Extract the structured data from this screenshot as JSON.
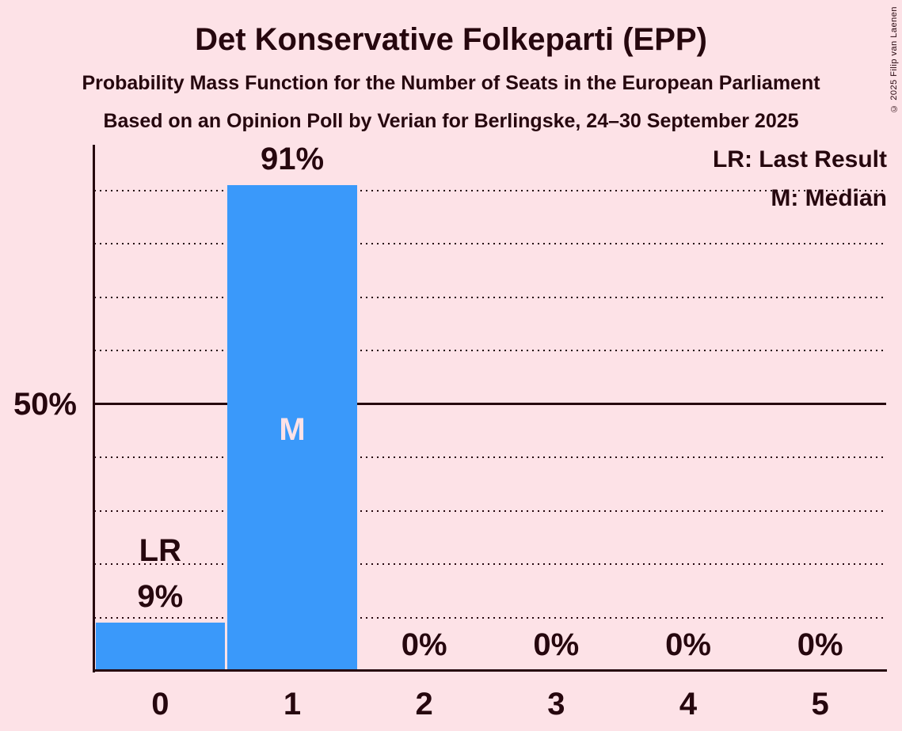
{
  "title": "Det Konservative Folkeparti (EPP)",
  "subtitles": [
    "Probability Mass Function for the Number of Seats in the European Parliament",
    "Based on an Opinion Poll by Verian for Berlingske, 24–30 September 2025"
  ],
  "legend": {
    "last_result": "LR: Last Result",
    "median": "M: Median"
  },
  "copyright": "© 2025 Filip van Laenen",
  "colors": {
    "background": "#fde2e7",
    "bar": "#3a99fa",
    "text": "#26070e"
  },
  "chart_data": {
    "type": "bar",
    "title": "Det Konservative Folkeparti (EPP)",
    "categories": [
      "0",
      "1",
      "2",
      "3",
      "4",
      "5"
    ],
    "values_percent": [
      9,
      91,
      0,
      0,
      0,
      0
    ],
    "bar_labels": [
      "9%",
      "91%",
      "0%",
      "0%",
      "0%",
      "0%"
    ],
    "y_tick_labels": [
      "50%"
    ],
    "y_tick_percents": [
      50
    ],
    "ylim": [
      0,
      100
    ],
    "gridline_percents": [
      10,
      20,
      30,
      40,
      50,
      60,
      70,
      80,
      90
    ],
    "solid_gridline_percent": 50,
    "grid_style": "dotted horizontal",
    "legend_position": "top-right",
    "median": {
      "category": "1",
      "marker": "M"
    },
    "last_result": {
      "category": "0",
      "marker": "LR"
    }
  }
}
